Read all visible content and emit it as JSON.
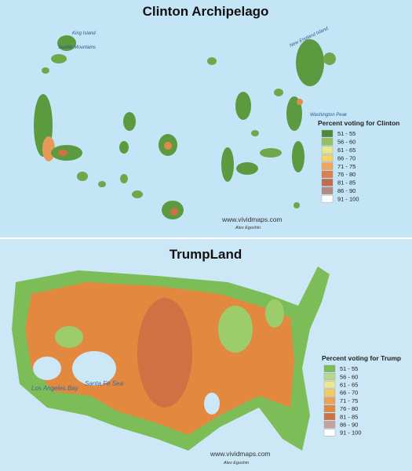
{
  "top_map": {
    "title": "Clinton Archipelago",
    "legend_title": "Percent voting for Clinton",
    "legend": [
      {
        "label": "51 - 55",
        "color": "#4f8a3a"
      },
      {
        "label": "56 - 60",
        "color": "#93c15e"
      },
      {
        "label": "61 - 65",
        "color": "#e6ea8c"
      },
      {
        "label": "66 - 70",
        "color": "#f4d26c"
      },
      {
        "label": "71 - 75",
        "color": "#f1a65c"
      },
      {
        "label": "76 - 80",
        "color": "#e07d4c"
      },
      {
        "label": "81 - 85",
        "color": "#c26a4f"
      },
      {
        "label": "86 - 90",
        "color": "#b28c82"
      },
      {
        "label": "91 - 100",
        "color": "#ffffff"
      }
    ],
    "watermark": "www.vividmaps.com",
    "author": "Alex Egoshin",
    "labels": [
      "King Island",
      "New England Island",
      "Washington Peak",
      "Seattle Mountains"
    ]
  },
  "bottom_map": {
    "title": "TrumpLand",
    "legend_title": "Percent voting for Trump",
    "legend": [
      {
        "label": "51 - 55",
        "color": "#7dbd58"
      },
      {
        "label": "56 - 60",
        "color": "#b9d88b"
      },
      {
        "label": "61 - 65",
        "color": "#efe78f"
      },
      {
        "label": "66 - 70",
        "color": "#f6c962"
      },
      {
        "label": "71 - 75",
        "color": "#f0a252"
      },
      {
        "label": "76 - 80",
        "color": "#e2893f"
      },
      {
        "label": "81 - 85",
        "color": "#cf7142"
      },
      {
        "label": "86 - 90",
        "color": "#c5a29b"
      },
      {
        "label": "91 - 100",
        "color": "#ffffff"
      }
    ],
    "watermark": "www.vividmaps.com",
    "author": "Alex Egoshin",
    "labels": [
      "Los Angeles Bay",
      "Santa Fe Sea"
    ]
  }
}
